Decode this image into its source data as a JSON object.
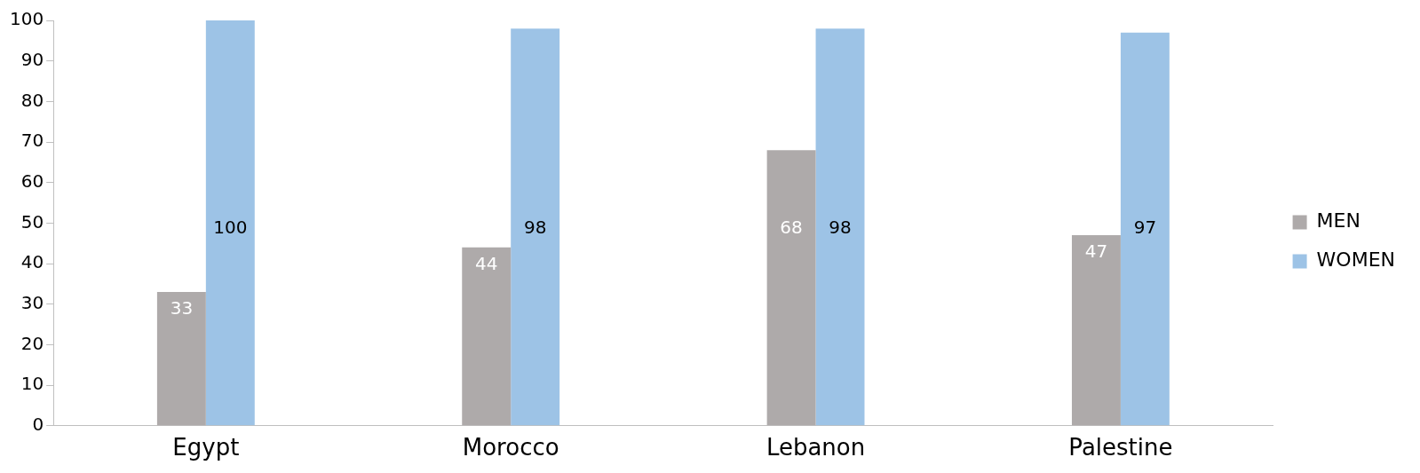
{
  "chart_data": {
    "type": "bar",
    "categories": [
      "Egypt",
      "Morocco",
      "Lebanon",
      "Palestine"
    ],
    "series": [
      {
        "name": "MEN",
        "color": "#aeaaaa",
        "values": [
          33,
          44,
          68,
          47
        ]
      },
      {
        "name": "WOMEN",
        "color": "#9dc3e6",
        "values": [
          100,
          98,
          98,
          97
        ]
      }
    ],
    "ylim": [
      0,
      100
    ],
    "yticks": [
      0,
      10,
      20,
      30,
      40,
      50,
      60,
      70,
      80,
      90,
      100
    ],
    "grid": false,
    "legend": "right",
    "data_labels": true
  }
}
